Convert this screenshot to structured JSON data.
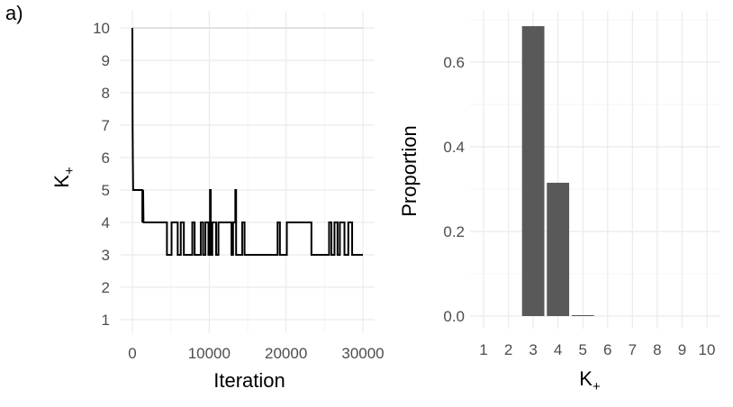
{
  "panel_label": "a)",
  "chart_data": [
    {
      "type": "line",
      "xlabel": "Iteration",
      "ylabel_main": "K",
      "ylabel_sub": "+",
      "xlim": [
        0,
        30000
      ],
      "ylim": [
        1,
        10
      ],
      "x_ticks": [
        0,
        10000,
        20000,
        30000
      ],
      "x_tick_labels": [
        "0",
        "10000",
        "20000",
        "30000"
      ],
      "y_ticks": [
        1,
        2,
        3,
        4,
        5,
        6,
        7,
        8,
        9,
        10
      ],
      "y_tick_labels": [
        "1",
        "2",
        "3",
        "4",
        "5",
        "6",
        "7",
        "8",
        "9",
        "10"
      ],
      "grid": true,
      "reference_line": {
        "y": 10,
        "color": "#d9d9d9"
      },
      "series_color": "#000000",
      "trace": [
        [
          0,
          10
        ],
        [
          30,
          7
        ],
        [
          60,
          6
        ],
        [
          100,
          5
        ],
        [
          1300,
          5
        ],
        [
          1300,
          4
        ],
        [
          1400,
          5
        ],
        [
          1450,
          4
        ],
        [
          4500,
          4
        ],
        [
          4500,
          3
        ],
        [
          5100,
          3
        ],
        [
          5100,
          4
        ],
        [
          5900,
          4
        ],
        [
          5900,
          3
        ],
        [
          6300,
          3
        ],
        [
          6300,
          4
        ],
        [
          6700,
          4
        ],
        [
          6700,
          3
        ],
        [
          7800,
          3
        ],
        [
          7800,
          4
        ],
        [
          8100,
          4
        ],
        [
          8100,
          3
        ],
        [
          8900,
          3
        ],
        [
          8900,
          4
        ],
        [
          9200,
          4
        ],
        [
          9200,
          3
        ],
        [
          9500,
          3
        ],
        [
          9500,
          4
        ],
        [
          9900,
          4
        ],
        [
          9900,
          3
        ],
        [
          10100,
          3
        ],
        [
          10100,
          5
        ],
        [
          10200,
          5
        ],
        [
          10200,
          3
        ],
        [
          10400,
          3
        ],
        [
          10400,
          4
        ],
        [
          10900,
          4
        ],
        [
          10900,
          3
        ],
        [
          11200,
          3
        ],
        [
          11200,
          4
        ],
        [
          12900,
          4
        ],
        [
          12900,
          3
        ],
        [
          13100,
          3
        ],
        [
          13100,
          4
        ],
        [
          13400,
          4
        ],
        [
          13400,
          5
        ],
        [
          13500,
          5
        ],
        [
          13500,
          3
        ],
        [
          14300,
          3
        ],
        [
          14300,
          4
        ],
        [
          14600,
          4
        ],
        [
          14600,
          3
        ],
        [
          18900,
          3
        ],
        [
          18900,
          4
        ],
        [
          19200,
          4
        ],
        [
          19200,
          3
        ],
        [
          20100,
          3
        ],
        [
          20100,
          4
        ],
        [
          23300,
          4
        ],
        [
          23300,
          3
        ],
        [
          25600,
          3
        ],
        [
          25600,
          4
        ],
        [
          25900,
          4
        ],
        [
          25900,
          3
        ],
        [
          26300,
          3
        ],
        [
          26300,
          4
        ],
        [
          26700,
          4
        ],
        [
          26700,
          3
        ],
        [
          27000,
          3
        ],
        [
          27000,
          4
        ],
        [
          27600,
          4
        ],
        [
          27600,
          3
        ],
        [
          28100,
          3
        ],
        [
          28100,
          4
        ],
        [
          28600,
          4
        ],
        [
          28600,
          3
        ],
        [
          30000,
          3
        ]
      ]
    },
    {
      "type": "bar",
      "xlabel_main": "K",
      "xlabel_sub": "+",
      "ylabel": "Proportion",
      "categories": [
        "1",
        "2",
        "3",
        "4",
        "5",
        "6",
        "7",
        "8",
        "9",
        "10"
      ],
      "values": [
        0,
        0,
        0.685,
        0.315,
        0.001,
        0,
        0,
        0,
        0,
        0
      ],
      "ylim": [
        0,
        0.72
      ],
      "y_ticks": [
        0,
        0.2,
        0.4,
        0.6
      ],
      "y_tick_labels": [
        "0.0",
        "0.2",
        "0.4",
        "0.6"
      ],
      "grid": true,
      "bar_color": "#595959"
    }
  ]
}
